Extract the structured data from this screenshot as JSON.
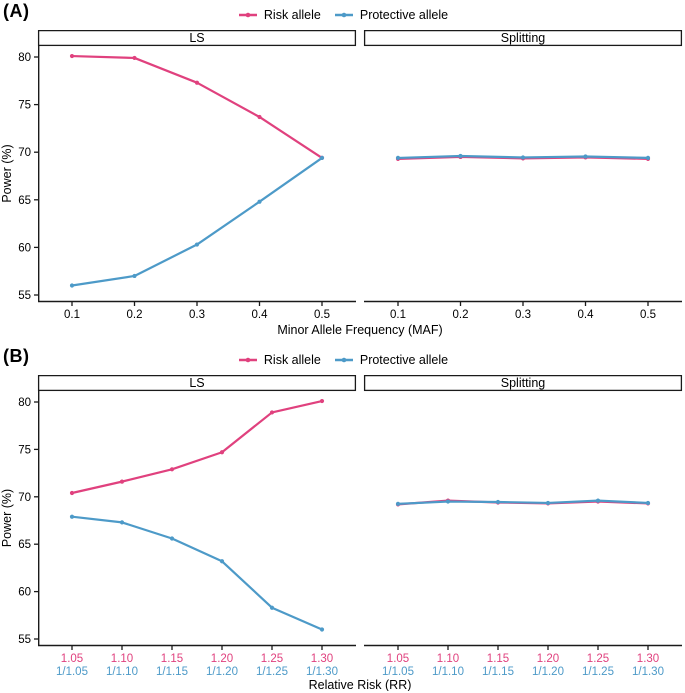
{
  "figure": {
    "background": "#ffffff",
    "text_color": "#000000",
    "axis_color": "#1a1a1a"
  },
  "chart_data": [
    {
      "type": "line",
      "panel_label": "(A)",
      "xlabel": "Minor Allele Frequency (MAF)",
      "ylabel": "Power (%)",
      "ylim": [
        55,
        80
      ],
      "yticks": [
        "55",
        "60",
        "65",
        "70",
        "75",
        "80"
      ],
      "grid": false,
      "legend_position": "top-center",
      "legend": [
        {
          "label": "Risk allele",
          "color": "#E0417E"
        },
        {
          "label": "Protective allele",
          "color": "#4D9AC8"
        }
      ],
      "facets": [
        {
          "name": "LS",
          "x_tick_labels": [
            "0.1",
            "0.2",
            "0.3",
            "0.4",
            "0.5"
          ],
          "series": [
            {
              "name": "Risk allele",
              "color": "#E0417E",
              "values": [
                80.1,
                79.9,
                77.3,
                73.7,
                69.4
              ]
            },
            {
              "name": "Protective allele",
              "color": "#4D9AC8",
              "values": [
                56.0,
                57.0,
                60.3,
                64.8,
                69.4
              ]
            }
          ]
        },
        {
          "name": "Splitting",
          "x_tick_labels": [
            "0.1",
            "0.2",
            "0.3",
            "0.4",
            "0.5"
          ],
          "series": [
            {
              "name": "Risk allele",
              "color": "#E0417E",
              "values": [
                69.3,
                69.5,
                69.35,
                69.45,
                69.3
              ]
            },
            {
              "name": "Protective allele",
              "color": "#4D9AC8",
              "values": [
                69.4,
                69.6,
                69.45,
                69.55,
                69.4
              ]
            }
          ]
        }
      ]
    },
    {
      "type": "line",
      "panel_label": "(B)",
      "xlabel": "Relative Risk (RR)",
      "ylabel": "Power (%)",
      "ylim": [
        55,
        80
      ],
      "yticks": [
        "55",
        "60",
        "65",
        "70",
        "75",
        "80"
      ],
      "grid": false,
      "legend_position": "top-center",
      "legend": [
        {
          "label": "Risk allele",
          "color": "#E0417E"
        },
        {
          "label": "Protective allele",
          "color": "#4D9AC8"
        }
      ],
      "facets": [
        {
          "name": "LS",
          "x_tick_labels": [
            {
              "risk": "1.05",
              "protective": "1/1.05"
            },
            {
              "risk": "1.10",
              "protective": "1/1.10"
            },
            {
              "risk": "1.15",
              "protective": "1/1.15"
            },
            {
              "risk": "1.20",
              "protective": "1/1.20"
            },
            {
              "risk": "1.25",
              "protective": "1/1.25"
            },
            {
              "risk": "1.30",
              "protective": "1/1.30"
            }
          ],
          "series": [
            {
              "name": "Risk allele",
              "color": "#E0417E",
              "values": [
                70.4,
                71.6,
                72.9,
                74.7,
                78.9,
                80.1
              ]
            },
            {
              "name": "Protective allele",
              "color": "#4D9AC8",
              "values": [
                67.9,
                67.3,
                65.6,
                63.2,
                58.3,
                56.0
              ]
            }
          ]
        },
        {
          "name": "Splitting",
          "x_tick_labels": [
            {
              "risk": "1.05",
              "protective": "1/1.05"
            },
            {
              "risk": "1.10",
              "protective": "1/1.10"
            },
            {
              "risk": "1.15",
              "protective": "1/1.15"
            },
            {
              "risk": "1.20",
              "protective": "1/1.20"
            },
            {
              "risk": "1.25",
              "protective": "1/1.25"
            },
            {
              "risk": "1.30",
              "protective": "1/1.30"
            }
          ],
          "series": [
            {
              "name": "Risk allele",
              "color": "#E0417E",
              "values": [
                69.2,
                69.6,
                69.4,
                69.3,
                69.5,
                69.3
              ]
            },
            {
              "name": "Protective allele",
              "color": "#4D9AC8",
              "values": [
                69.25,
                69.5,
                69.45,
                69.35,
                69.6,
                69.35
              ]
            }
          ]
        }
      ]
    }
  ]
}
